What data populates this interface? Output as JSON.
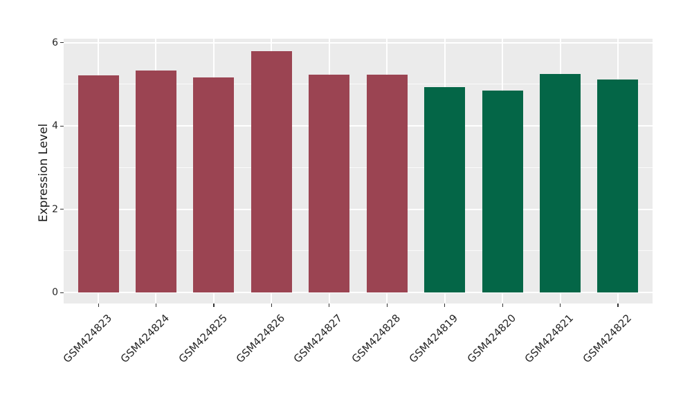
{
  "chart_data": {
    "type": "bar",
    "title": "",
    "xlabel": "",
    "ylabel": "Expression Level",
    "categories": [
      "GSM424823",
      "GSM424824",
      "GSM424825",
      "GSM424826",
      "GSM424827",
      "GSM424828",
      "GSM424819",
      "GSM424820",
      "GSM424821",
      "GSM424822"
    ],
    "values": [
      5.21,
      5.33,
      5.16,
      5.79,
      5.23,
      5.23,
      4.93,
      4.84,
      5.25,
      5.11
    ],
    "bar_colors": [
      "#9B4452",
      "#9B4452",
      "#9B4452",
      "#9B4452",
      "#9B4452",
      "#9B4452",
      "#046647",
      "#046647",
      "#046647",
      "#046647"
    ],
    "groups": [
      "red",
      "red",
      "red",
      "red",
      "red",
      "red",
      "green",
      "green",
      "green",
      "green"
    ],
    "y_major_ticks": [
      0,
      2,
      4,
      6
    ],
    "y_tick_labels": [
      "0",
      "2",
      "4",
      "6"
    ],
    "y_minor_gridlines": [
      1,
      3,
      5
    ],
    "ylim": [
      -0.27,
      6.09
    ],
    "grid": "on",
    "legend": null,
    "colors": {
      "figure_bg": "#FFFFFF",
      "panel_bg": "#EBEBEB",
      "gridline": "#FFFFFF",
      "tick_mark": "#333333",
      "tick_text": "#262626",
      "axis_title_text": "#1A1A1A",
      "red_group": "#9B4452",
      "green_group": "#046647"
    }
  }
}
